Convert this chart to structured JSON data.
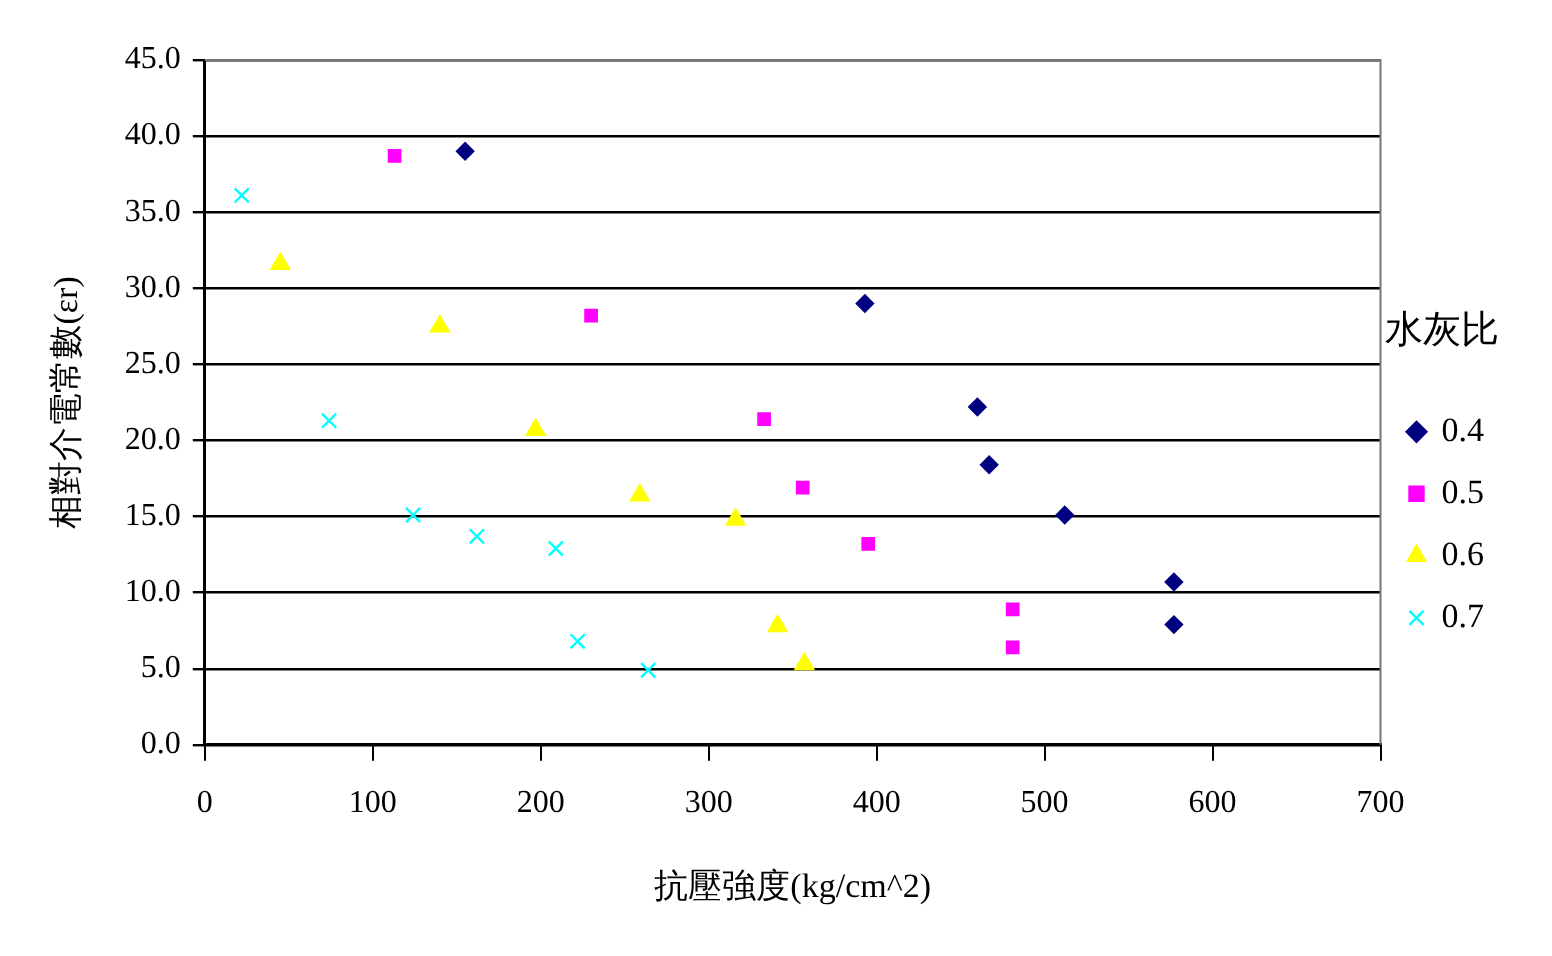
{
  "chart_data": {
    "type": "scatter",
    "xlabel": "抗壓強度(kg/cm^2)",
    "ylabel": "相對介電常數(εr)",
    "legend_title": "水灰比",
    "xlim": [
      0,
      700
    ],
    "xticks": [
      0,
      100,
      200,
      300,
      400,
      500,
      600,
      700
    ],
    "ylim": [
      0,
      45
    ],
    "yticks": [
      {
        "value": 0,
        "label": "0.0"
      },
      {
        "value": 5,
        "label": "5.0"
      },
      {
        "value": 10,
        "label": "10.0"
      },
      {
        "value": 15,
        "label": "15.0"
      },
      {
        "value": 20,
        "label": "20.0"
      },
      {
        "value": 25,
        "label": "25.0"
      },
      {
        "value": 30,
        "label": "30.0"
      },
      {
        "value": 35,
        "label": "35.0"
      },
      {
        "value": 40,
        "label": "40.0"
      },
      {
        "value": 45,
        "label": "45.0"
      }
    ],
    "grid": "y",
    "legend": "right",
    "series": [
      {
        "name": "0.4",
        "color": "#000080",
        "marker": "diamond",
        "x": [
          155,
          393,
          460,
          467,
          512,
          577,
          577
        ],
        "values": [
          39.0,
          29.0,
          22.2,
          18.4,
          15.1,
          10.7,
          7.9
        ]
      },
      {
        "name": "0.5",
        "color": "#ff00ff",
        "marker": "square",
        "x": [
          113,
          230,
          333,
          356,
          395,
          481,
          481
        ],
        "values": [
          38.7,
          28.2,
          21.4,
          16.9,
          13.2,
          8.9,
          6.4
        ]
      },
      {
        "name": "0.6",
        "color": "#ffff00",
        "marker": "triangle",
        "x": [
          45,
          140,
          197,
          259,
          316,
          341,
          357
        ],
        "values": [
          31.6,
          27.5,
          20.7,
          16.4,
          14.8,
          7.8,
          5.3
        ]
      },
      {
        "name": "0.7",
        "color": "#00ffff",
        "marker": "cross",
        "x": [
          22,
          74,
          124,
          162,
          209,
          222,
          264
        ],
        "values": [
          36.1,
          21.3,
          15.1,
          13.7,
          12.9,
          6.8,
          4.9
        ]
      }
    ]
  }
}
